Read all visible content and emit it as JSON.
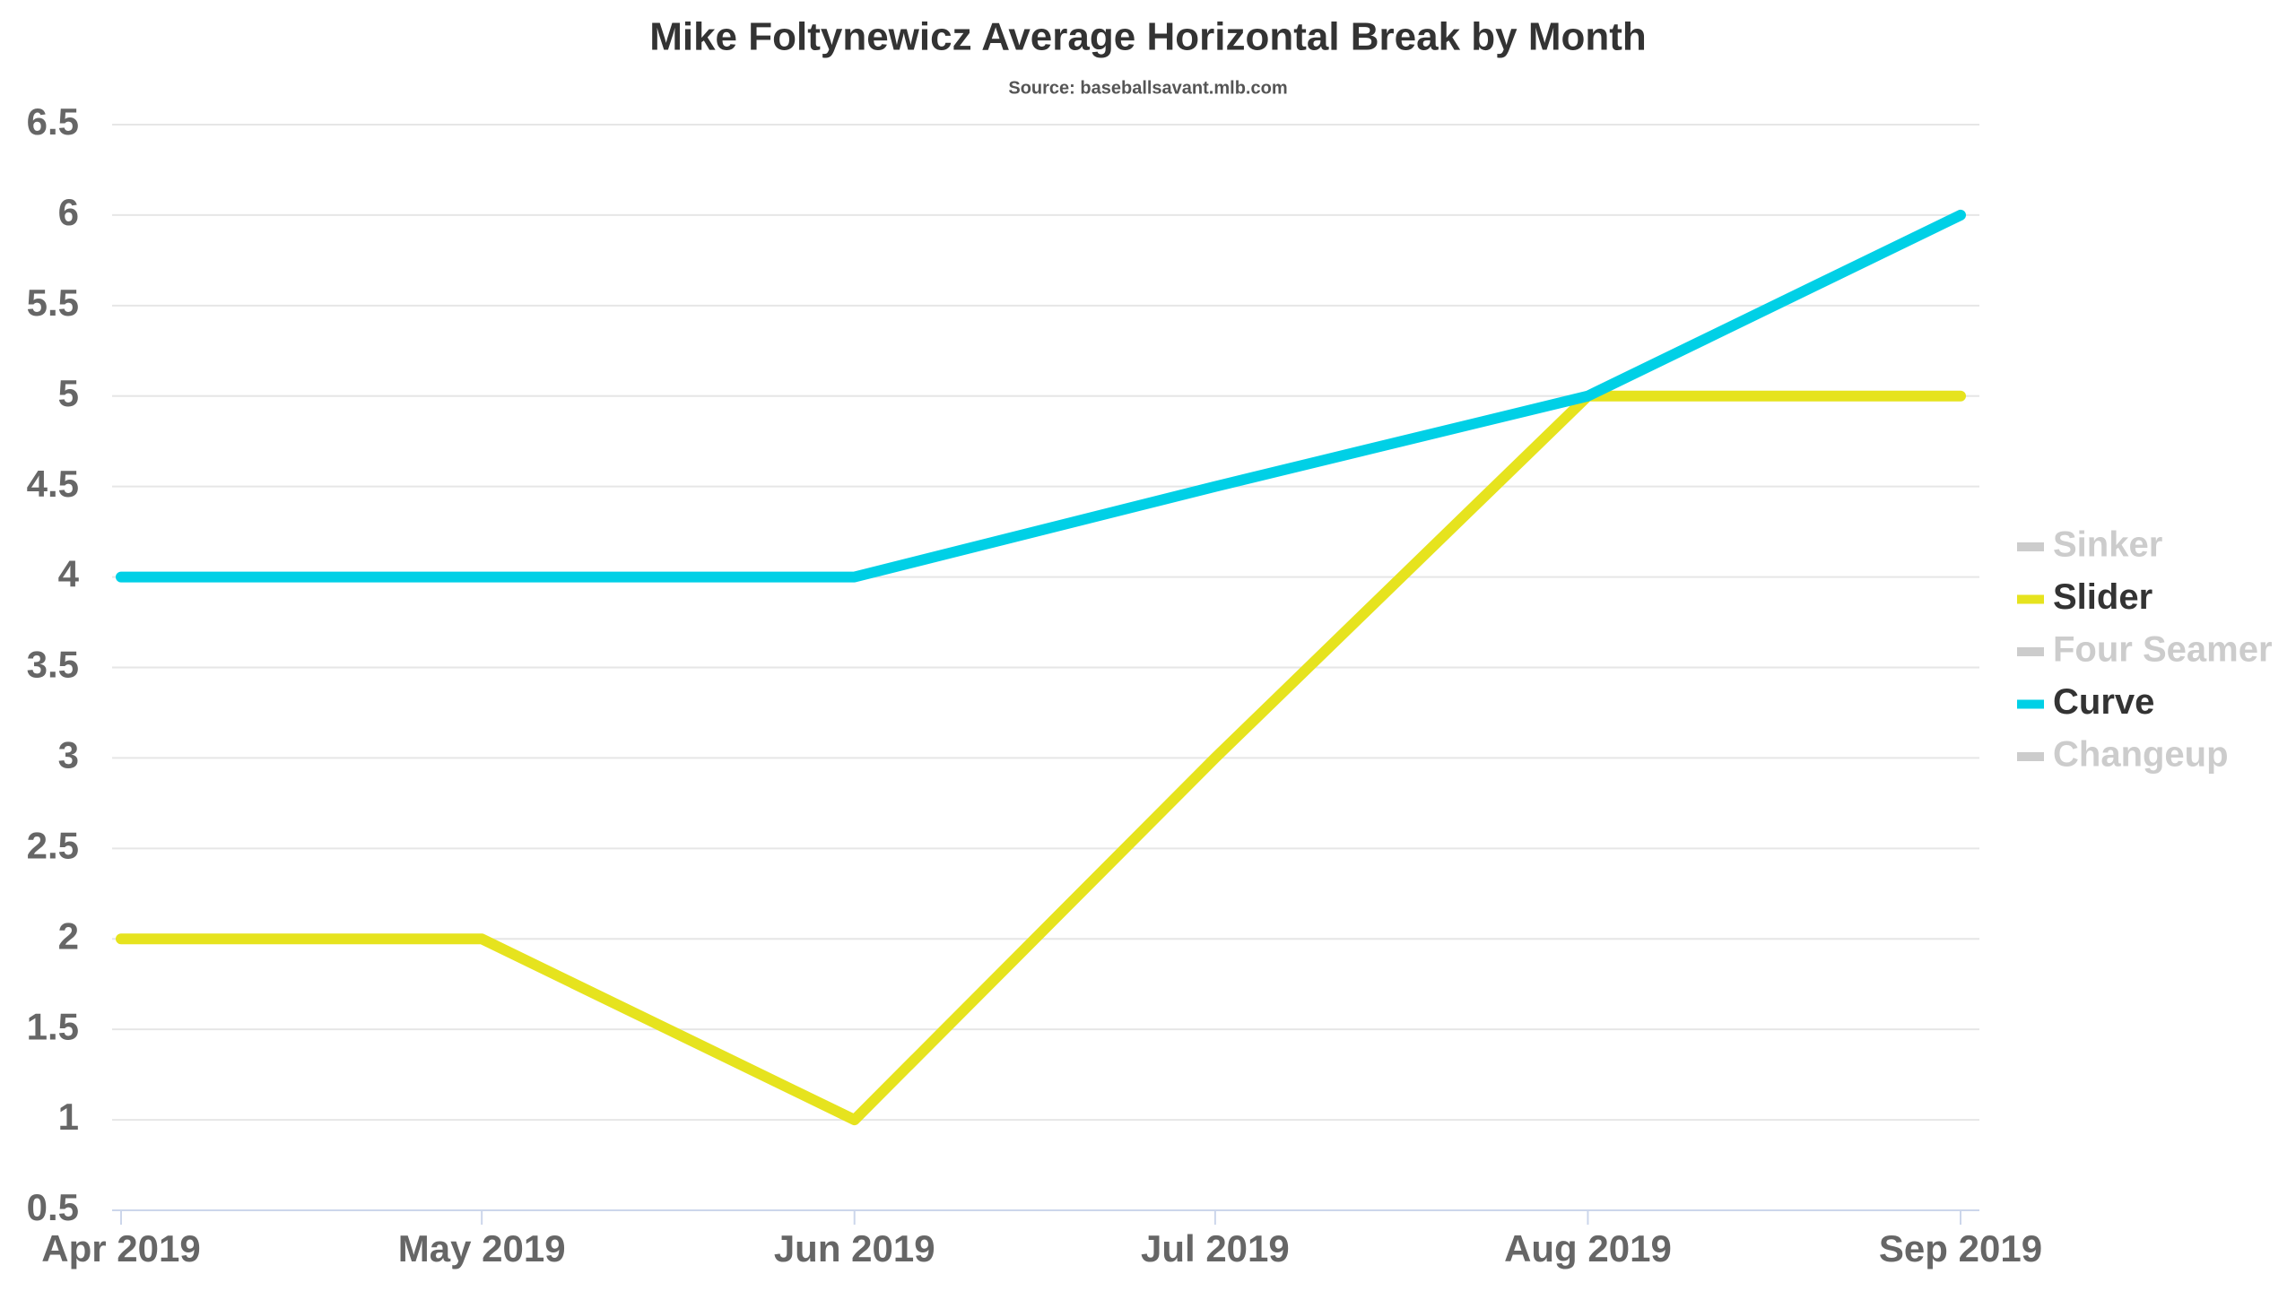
{
  "chart_data": {
    "type": "line",
    "title": "Mike Foltynewicz Average Horizontal Break by Month",
    "subtitle": "Source: baseballsavant.mlb.com",
    "x": [
      "2019-04",
      "2019-05",
      "2019-06",
      "2019-07",
      "2019-08",
      "2019-09"
    ],
    "xticks": [
      {
        "value": "2019-04",
        "label": "Apr 2019"
      },
      {
        "value": "2019-05",
        "label": "May 2019"
      },
      {
        "value": "2019-06",
        "label": "Jun 2019"
      },
      {
        "value": "2019-07",
        "label": "Jul 2019"
      },
      {
        "value": "2019-08",
        "label": "Aug 2019"
      },
      {
        "value": "2019-09",
        "label": "Sep 2019"
      }
    ],
    "ylim": [
      0.5,
      6.5
    ],
    "yticks": [
      0.5,
      1,
      1.5,
      2,
      2.5,
      3,
      3.5,
      4,
      4.5,
      5,
      5.5,
      6,
      6.5
    ],
    "grid": true,
    "legend": "right",
    "series": [
      {
        "name": "Sinker",
        "color": "#cccccc",
        "visible": false,
        "values": [
          null,
          null,
          null,
          null,
          null,
          null
        ]
      },
      {
        "name": "Slider",
        "color": "#e6e31e",
        "visible": true,
        "values": [
          2,
          2,
          1,
          3,
          5,
          5
        ]
      },
      {
        "name": "Four Seamer",
        "color": "#cccccc",
        "visible": false,
        "values": [
          null,
          null,
          null,
          null,
          null,
          null
        ]
      },
      {
        "name": "Curve",
        "color": "#00d0e6",
        "visible": true,
        "values": [
          4,
          4,
          4,
          4.5,
          5,
          6
        ]
      },
      {
        "name": "Changeup",
        "color": "#cccccc",
        "visible": false,
        "values": [
          null,
          null,
          null,
          null,
          null,
          null
        ]
      }
    ]
  }
}
